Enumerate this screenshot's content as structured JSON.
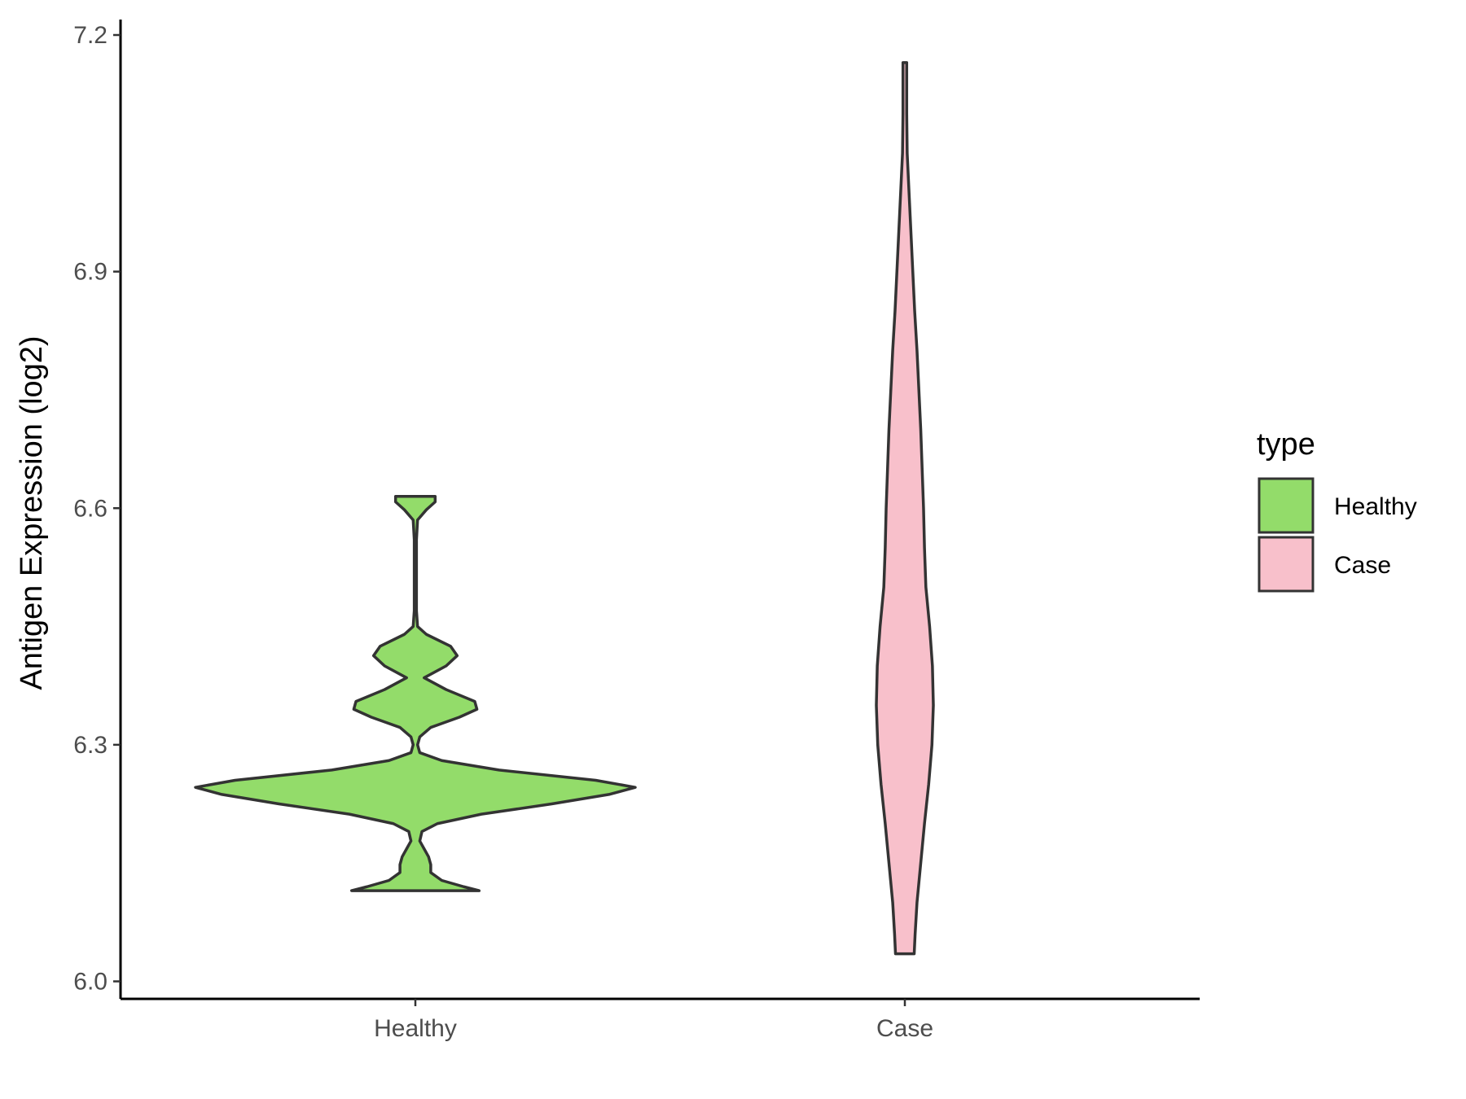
{
  "chart_data": {
    "type": "violin",
    "title": "",
    "xlabel": "",
    "ylabel": "Antigen Expression (log2)",
    "ylim": [
      5.96,
      7.22
    ],
    "y_ticks": [
      "6.0",
      "6.3",
      "6.6",
      "6.9",
      "7.2"
    ],
    "y_tick_values": [
      6.0,
      6.3,
      6.6,
      6.9,
      7.2
    ],
    "categories": [
      "Healthy",
      "Case"
    ],
    "grid": false,
    "legend": {
      "title": "type",
      "position": "right",
      "entries": [
        {
          "label": "Healthy",
          "color": "#93dc6a"
        },
        {
          "label": "Case",
          "color": "#f8c0cb"
        }
      ]
    },
    "series": [
      {
        "category": "Healthy",
        "color": "#93dc6a",
        "outline": "#333333",
        "min": 6.115,
        "max": 6.615,
        "density": [
          [
            6.115,
            0.29
          ],
          [
            6.12,
            0.22
          ],
          [
            6.128,
            0.12
          ],
          [
            6.138,
            0.07
          ],
          [
            6.148,
            0.07
          ],
          [
            6.158,
            0.06
          ],
          [
            6.168,
            0.04
          ],
          [
            6.178,
            0.02
          ],
          [
            6.19,
            0.03
          ],
          [
            6.2,
            0.1
          ],
          [
            6.212,
            0.3
          ],
          [
            6.225,
            0.62
          ],
          [
            6.237,
            0.88
          ],
          [
            6.246,
            1.0
          ],
          [
            6.255,
            0.82
          ],
          [
            6.268,
            0.38
          ],
          [
            6.28,
            0.12
          ],
          [
            6.29,
            0.02
          ],
          [
            6.3,
            0.01
          ],
          [
            6.31,
            0.02
          ],
          [
            6.322,
            0.07
          ],
          [
            6.335,
            0.2
          ],
          [
            6.345,
            0.28
          ],
          [
            6.355,
            0.27
          ],
          [
            6.37,
            0.14
          ],
          [
            6.385,
            0.04
          ],
          [
            6.4,
            0.14
          ],
          [
            6.413,
            0.19
          ],
          [
            6.425,
            0.16
          ],
          [
            6.44,
            0.05
          ],
          [
            6.45,
            0.01
          ],
          [
            6.47,
            0.005
          ],
          [
            6.5,
            0.005
          ],
          [
            6.53,
            0.005
          ],
          [
            6.56,
            0.005
          ],
          [
            6.585,
            0.01
          ],
          [
            6.598,
            0.05
          ],
          [
            6.608,
            0.09
          ],
          [
            6.615,
            0.09
          ]
        ]
      },
      {
        "category": "Case",
        "color": "#f8c0cb",
        "outline": "#333333",
        "min": 6.035,
        "max": 7.165,
        "density": [
          [
            6.035,
            0.02
          ],
          [
            6.06,
            0.022
          ],
          [
            6.1,
            0.026
          ],
          [
            6.15,
            0.034
          ],
          [
            6.2,
            0.042
          ],
          [
            6.25,
            0.051
          ],
          [
            6.3,
            0.058
          ],
          [
            6.35,
            0.061
          ],
          [
            6.4,
            0.059
          ],
          [
            6.45,
            0.053
          ],
          [
            6.5,
            0.045
          ],
          [
            6.55,
            0.042
          ],
          [
            6.6,
            0.04
          ],
          [
            6.65,
            0.037
          ],
          [
            6.7,
            0.034
          ],
          [
            6.75,
            0.03
          ],
          [
            6.8,
            0.026
          ],
          [
            6.85,
            0.021
          ],
          [
            6.9,
            0.017
          ],
          [
            6.95,
            0.013
          ],
          [
            7.0,
            0.009
          ],
          [
            7.05,
            0.005
          ],
          [
            7.1,
            0.004
          ],
          [
            7.165,
            0.004
          ]
        ]
      }
    ]
  }
}
